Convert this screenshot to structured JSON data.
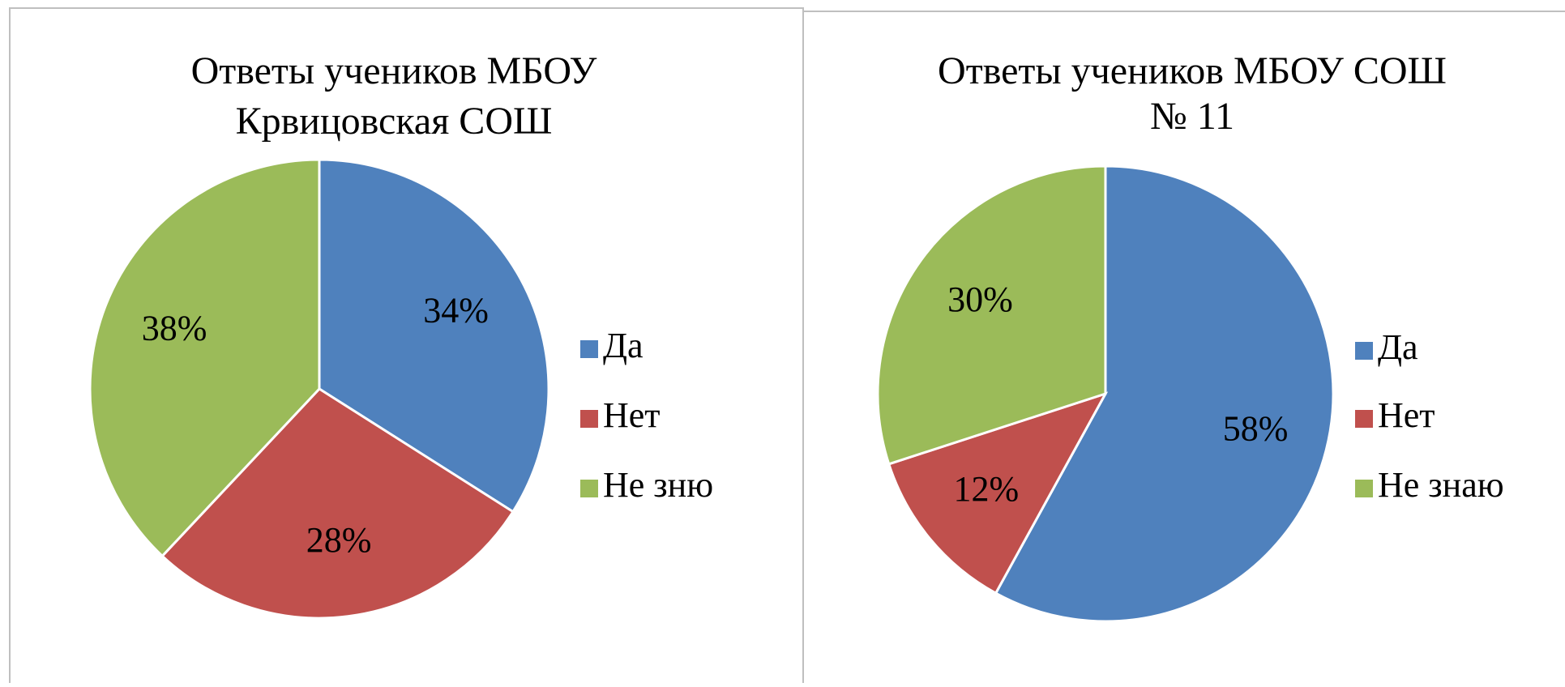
{
  "chart_data": [
    {
      "type": "pie",
      "title": [
        "Ответы учеников МБОУ",
        "Крвицовская СОШ"
      ],
      "categories": [
        "Да",
        "Нет",
        "Не зню"
      ],
      "values": [
        34,
        28,
        38
      ],
      "value_labels": [
        "34%",
        "28%",
        "38%"
      ],
      "colors": [
        "#4f81bd",
        "#c0504d",
        "#9bbb59"
      ],
      "legend": "right"
    },
    {
      "type": "pie",
      "title": [
        "Ответы учеников МБОУ СОШ",
        "№ 11"
      ],
      "categories": [
        "Да",
        "Нет",
        "Не знаю"
      ],
      "values": [
        58,
        12,
        30
      ],
      "value_labels": [
        "58%",
        "12%",
        "30%"
      ],
      "colors": [
        "#4f81bd",
        "#c0504d",
        "#9bbb59"
      ],
      "legend": "right"
    }
  ]
}
